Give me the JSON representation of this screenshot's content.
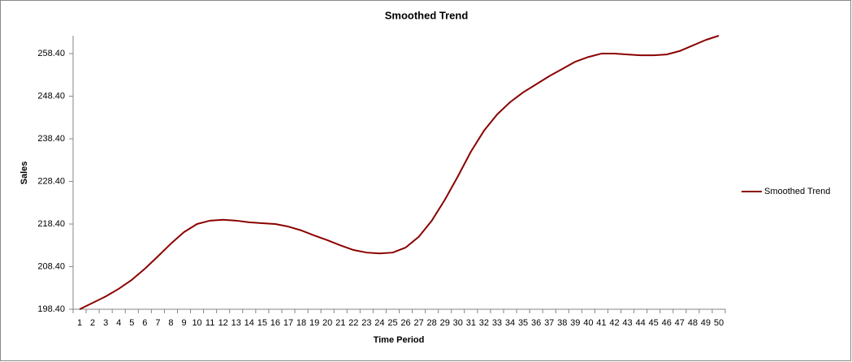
{
  "chart_data": {
    "type": "line",
    "title": "Smoothed Trend",
    "x_label": "Time Period",
    "y_label": "Sales",
    "categories": [
      "1",
      "2",
      "3",
      "4",
      "5",
      "6",
      "7",
      "8",
      "9",
      "10",
      "11",
      "12",
      "13",
      "14",
      "15",
      "16",
      "17",
      "18",
      "19",
      "20",
      "21",
      "22",
      "23",
      "24",
      "25",
      "26",
      "27",
      "28",
      "29",
      "30",
      "31",
      "32",
      "33",
      "34",
      "35",
      "36",
      "37",
      "38",
      "39",
      "40",
      "41",
      "42",
      "43",
      "44",
      "45",
      "46",
      "47",
      "48",
      "49",
      "50"
    ],
    "series": [
      {
        "name": "Smoothed Trend",
        "color": "#8b0000",
        "values": [
          198.4,
          199.9,
          201.4,
          203.2,
          205.3,
          207.9,
          210.8,
          213.8,
          216.5,
          218.4,
          219.2,
          219.4,
          219.2,
          218.8,
          218.6,
          218.4,
          217.8,
          216.9,
          215.7,
          214.6,
          213.4,
          212.3,
          211.7,
          211.5,
          211.7,
          212.9,
          215.4,
          219.2,
          224.1,
          229.6,
          235.4,
          240.3,
          244.1,
          247.0,
          249.3,
          251.2,
          253.1,
          254.8,
          256.5,
          257.6,
          258.4,
          258.4,
          258.2,
          258.0,
          258.0,
          258.2,
          259.0,
          260.3,
          261.6,
          262.6
        ]
      }
    ],
    "ylim": [
      198.4,
      262.6
    ],
    "yticks": [
      {
        "value": 198.4,
        "label": "198.40"
      },
      {
        "value": 208.4,
        "label": "208.40"
      },
      {
        "value": 218.4,
        "label": "218.40"
      },
      {
        "value": 228.4,
        "label": "228.40"
      },
      {
        "value": 238.4,
        "label": "238.40"
      },
      {
        "value": 248.4,
        "label": "248.40"
      },
      {
        "value": 258.4,
        "label": "258.40"
      }
    ],
    "grid": false,
    "legend": "right"
  }
}
